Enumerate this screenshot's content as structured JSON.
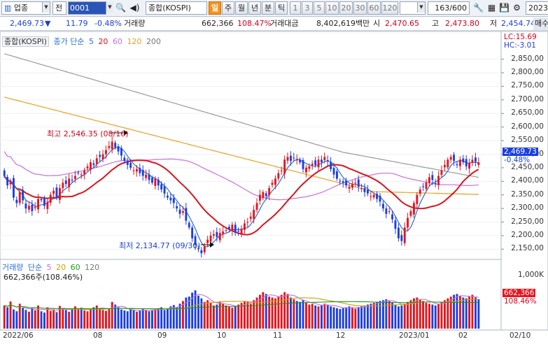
{
  "toolbar": {
    "market_type": "업종",
    "period_code": "전",
    "index_code": "0001",
    "index_name": "종합(KOSPI)",
    "period_tabs": [
      "일",
      "주",
      "월",
      "년",
      "분",
      "틱"
    ],
    "minute_intervals": [
      "1",
      "3",
      "5",
      "10",
      "20",
      "30",
      "60",
      "120"
    ],
    "count_display": "163/600",
    "date_fragment": "2023"
  },
  "info": {
    "price": "2,469.73",
    "change_arrow": "▼",
    "change": "11.79",
    "change_pct": "-0.48%",
    "volume_label": "거래량",
    "volume": "662,366",
    "volume_pct": "108.47%",
    "amount_label": "거래대금",
    "amount": "8,402,619백만",
    "open_label": "시",
    "open": "2,470.65",
    "high_label": "고",
    "high": "2,473.80",
    "low_label": "저",
    "low": "2,454.74",
    "side_label": "매수"
  },
  "price_panel": {
    "legend_name": "종합(KOSPI)",
    "legend_ma_prefix": "종가 단순",
    "legend_ma": [
      "5",
      "20",
      "60",
      "120",
      "200"
    ],
    "lc": "LC:15.69",
    "hc": "HC:-3.01",
    "y_ticks": [
      "2,850,00",
      "2,800,00",
      "2,750,00",
      "2,700,00",
      "2,650,00",
      "2,600,00",
      "2,550,00",
      "2,500,00",
      "2,450,00",
      "2,400,00",
      "2,350,00",
      "2,300,00",
      "2,250,00",
      "2,200,00",
      "2,150,00"
    ],
    "last_price_tag": "2,469.73",
    "last_pct_tag": "-0.48%",
    "high_annotation": "최고 2,546.35 (08/16)",
    "low_annotation": "최저 2,134.77 (09/30)"
  },
  "volume_panel": {
    "legend_name": "거래량",
    "legend_ma_prefix": "단순",
    "legend_ma": [
      "5",
      "20",
      "60",
      "120"
    ],
    "volume_text": "662,366주(108.46%)",
    "y_tick": "1,000K",
    "last_vol_tag": "662,366",
    "last_vol_pct_tag": "108.46%"
  },
  "x_labels": [
    "2022/06",
    "08",
    "09",
    "10",
    "11",
    "12",
    "2023/01",
    "02",
    "02/10"
  ],
  "colors": {
    "up": "#e8131c",
    "down": "#1c3fe0",
    "ma5": "#2c6fd8",
    "ma20": "#d8141c",
    "ma60": "#c86fe0",
    "ma120": "#e8a020",
    "ma200": "#9a9a9a",
    "vol_ma20": "#c8a000",
    "vol_ma60": "#1a9a1a"
  },
  "chart_data": {
    "type": "candlestick",
    "y_range": [
      2120,
      2880
    ],
    "close_series": [
      2420,
      2385,
      2400,
      2340,
      2320,
      2360,
      2330,
      2300,
      2310,
      2290,
      2305,
      2335,
      2330,
      2310,
      2325,
      2350,
      2365,
      2340,
      2375,
      2395,
      2390,
      2410,
      2405,
      2420,
      2430,
      2425,
      2440,
      2455,
      2470,
      2460,
      2485,
      2490,
      2500,
      2515,
      2530,
      2546,
      2525,
      2510,
      2495,
      2475,
      2460,
      2450,
      2440,
      2445,
      2430,
      2420,
      2425,
      2405,
      2395,
      2410,
      2385,
      2370,
      2355,
      2340,
      2330,
      2320,
      2300,
      2280,
      2290,
      2255,
      2230,
      2190,
      2165,
      2150,
      2135,
      2160,
      2185,
      2200,
      2205,
      2195,
      2210,
      2215,
      2220,
      2225,
      2240,
      2210,
      2215,
      2225,
      2245,
      2250,
      2270,
      2295,
      2320,
      2350,
      2360,
      2345,
      2375,
      2395,
      2410,
      2430,
      2440,
      2480,
      2490,
      2475,
      2485,
      2480,
      2470,
      2445,
      2450,
      2455,
      2465,
      2460,
      2480,
      2470,
      2490,
      2475,
      2445,
      2425,
      2410,
      2400,
      2395,
      2385,
      2380,
      2390,
      2395,
      2380,
      2375,
      2360,
      2355,
      2345,
      2350,
      2335,
      2325,
      2300,
      2280,
      2290,
      2260,
      2225,
      2190,
      2180,
      2230,
      2265,
      2290,
      2320,
      2350,
      2370,
      2380,
      2395,
      2415,
      2405,
      2390,
      2420,
      2440,
      2460,
      2480,
      2490,
      2475,
      2460,
      2480,
      2470,
      2455,
      2468,
      2480,
      2472,
      2469.73
    ],
    "volume_series": [
      520,
      480,
      610,
      430,
      390,
      560,
      470,
      420,
      380,
      450,
      410,
      520,
      390,
      360,
      480,
      400,
      430,
      370,
      510,
      460,
      420,
      380,
      450,
      500,
      430,
      470,
      410,
      390,
      440,
      480,
      520,
      460,
      420,
      400,
      450,
      600,
      540,
      480,
      430,
      410,
      390,
      450,
      420,
      380,
      400,
      440,
      420,
      390,
      410,
      430,
      460,
      480,
      420,
      450,
      500,
      530,
      480,
      560,
      620,
      700,
      720,
      810,
      860,
      740,
      680,
      600,
      640,
      580,
      520,
      540,
      610,
      560,
      520,
      490,
      470,
      500,
      540,
      580,
      620,
      600,
      560,
      640,
      700,
      760,
      820,
      780,
      720,
      700,
      680,
      720,
      760,
      820,
      780,
      700,
      660,
      620,
      600,
      640,
      580,
      540,
      560,
      520,
      500,
      520,
      560,
      540,
      500,
      480,
      460,
      440,
      460,
      480,
      500,
      470,
      450,
      480,
      500,
      520,
      540,
      560,
      580,
      600,
      620,
      640,
      660,
      620,
      580,
      540,
      500,
      520,
      560,
      600,
      640,
      680,
      700,
      660,
      620,
      580,
      560,
      540,
      520,
      560,
      600,
      640,
      680,
      720,
      760,
      780,
      740,
      700,
      680,
      720,
      760,
      700,
      662
    ]
  }
}
